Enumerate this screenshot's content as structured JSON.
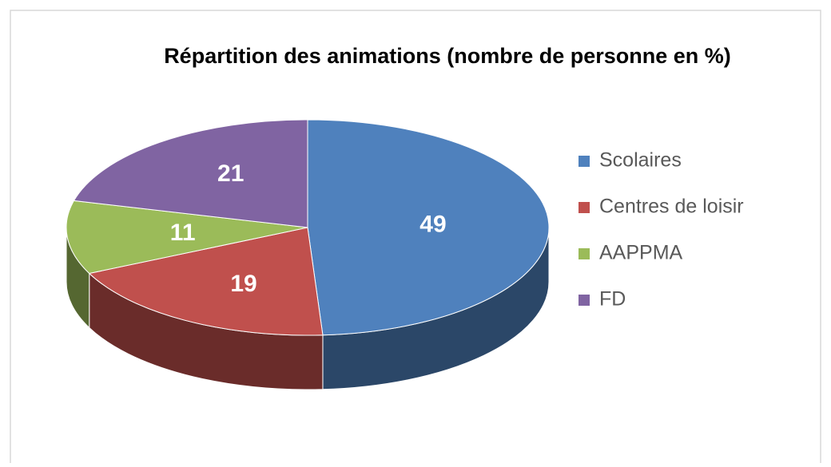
{
  "chart_data": {
    "type": "pie",
    "title": "Répartition des animations (nombre de personne en %)",
    "categories": [
      "Scolaires",
      "Centres de loisir",
      "AAPPMA",
      "FD"
    ],
    "values": [
      49,
      19,
      11,
      21
    ],
    "colors": [
      "#4f81bd",
      "#c0504d",
      "#9bbb59",
      "#8064a2"
    ],
    "legend": "right"
  }
}
